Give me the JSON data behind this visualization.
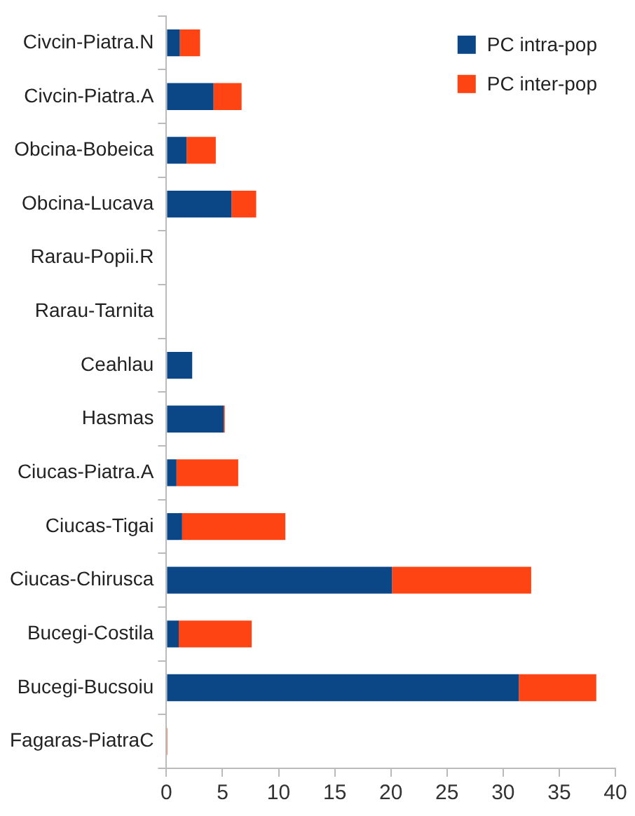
{
  "chart_data": {
    "type": "bar",
    "orientation": "horizontal",
    "stacked": true,
    "categories": [
      "Civcin-Piatra.N",
      "Civcin-Piatra.A",
      "Obcina-Bobeica",
      "Obcina-Lucava",
      "Rarau-Popii.R",
      "Rarau-Tarnita",
      "Ceahlau",
      "Hasmas",
      "Ciucas-Piatra.A",
      "Ciucas-Tigai",
      "Ciucas-Chirusca",
      "Bucegi-Costila",
      "Bucegi-Bucsoiu",
      "Fagaras-PiatraC"
    ],
    "series": [
      {
        "name": "PC intra-pop",
        "color": "#0b4687",
        "values": [
          1.2,
          4.2,
          1.8,
          5.8,
          0,
          0,
          2.3,
          5.1,
          0.9,
          1.4,
          20.1,
          1.1,
          31.4,
          0
        ]
      },
      {
        "name": "PC inter-pop",
        "color": "#fe4412",
        "values": [
          1.8,
          2.5,
          2.6,
          2.2,
          0,
          0,
          0,
          0.1,
          5.5,
          9.2,
          12.4,
          6.5,
          6.9,
          0.1
        ]
      }
    ],
    "xlim": [
      0,
      40
    ],
    "xticks": [
      0,
      5,
      10,
      15,
      20,
      25,
      30,
      35,
      40
    ],
    "grid": false,
    "legend": "top right"
  }
}
